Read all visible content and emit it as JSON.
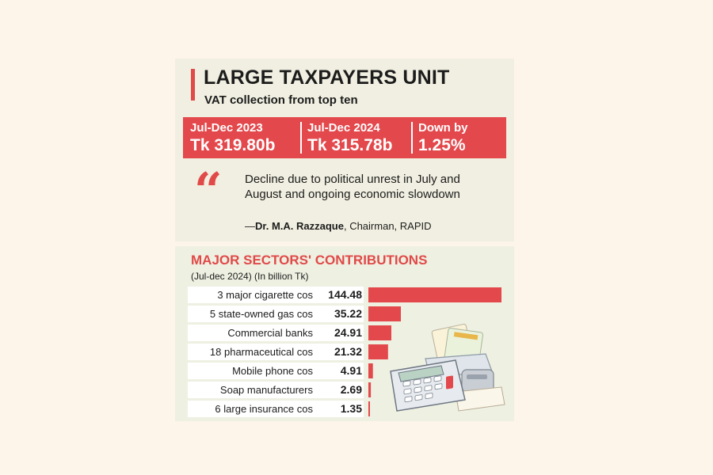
{
  "header": {
    "title": "LARGE TAXPAYERS UNIT",
    "subtitle": "VAT collection from top ten"
  },
  "stats": [
    {
      "label": "Jul-Dec 2023",
      "value": "Tk 319.80b"
    },
    {
      "label": "Jul-Dec 2024",
      "value": "Tk 315.78b"
    },
    {
      "label": "Down by",
      "value": "1.25%"
    }
  ],
  "quote": {
    "text": "Decline due to political unrest in July and August and ongoing economic slowdown",
    "dash": "—",
    "author": "Dr. M.A. Razzaque",
    "role": ", Chairman, RAPID"
  },
  "colors": {
    "accent": "#e3484c",
    "panel": "#f1efe1",
    "background": "#fdf5ea"
  },
  "illustration_icon": "calculator-and-papers-icon",
  "chart_data": {
    "type": "bar",
    "orientation": "horizontal",
    "title": "MAJOR SECTORS' CONTRIBUTIONS",
    "subtitle": "(Jul-dec 2024) (In billion Tk)",
    "categories": [
      "3 major cigarette cos",
      "5 state-owned gas cos",
      "Commercial banks",
      "18 pharmaceutical cos",
      "Mobile phone cos",
      "Soap manufacturers",
      "6 large insurance cos"
    ],
    "values": [
      144.48,
      35.22,
      24.91,
      21.32,
      4.91,
      2.69,
      1.35
    ],
    "value_labels": [
      "144.48",
      "35.22",
      "24.91",
      "21.32",
      "4.91",
      "2.69",
      "1.35"
    ],
    "xlim": [
      0,
      144.48
    ]
  }
}
